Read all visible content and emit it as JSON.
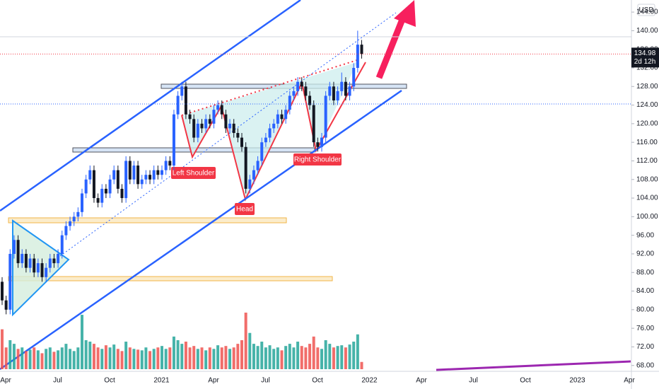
{
  "chart_data": {
    "type": "candlestick",
    "currency": "USD",
    "last_price": 134.98,
    "countdown": "2d 12h",
    "annotations": [
      "Left Shoulder",
      "Head",
      "Right Shoulder"
    ],
    "x_labels": [
      "Apr",
      "Jul",
      "Oct",
      "2021",
      "Apr",
      "Jul",
      "Oct",
      "2022",
      "Apr",
      "Jul",
      "Oct",
      "2023",
      "Apr"
    ],
    "ylim": [
      67.2,
      146.6
    ],
    "yticks": [
      {
        "value": 68,
        "label": "68.00"
      },
      {
        "value": 72,
        "label": "72.00"
      },
      {
        "value": 76,
        "label": "76.00"
      },
      {
        "value": 80,
        "label": "80.00"
      },
      {
        "value": 84,
        "label": "84.00"
      },
      {
        "value": 88,
        "label": "88.00"
      },
      {
        "value": 92,
        "label": "92.00"
      },
      {
        "value": 96,
        "label": "96.00"
      },
      {
        "value": 100,
        "label": "100.00"
      },
      {
        "value": 104,
        "label": "104.00"
      },
      {
        "value": 108,
        "label": "108.00"
      },
      {
        "value": 112,
        "label": "112.00"
      },
      {
        "value": 116,
        "label": "116.00"
      },
      {
        "value": 120,
        "label": "120.00"
      },
      {
        "value": 124,
        "label": "124.00"
      },
      {
        "value": 128,
        "label": "128.00"
      },
      {
        "value": 132,
        "label": "132.00"
      },
      {
        "value": 136,
        "label": "136.00"
      },
      {
        "value": 140,
        "label": "140.00"
      },
      {
        "value": 144,
        "label": "144.00"
      }
    ],
    "up_color": "#2962ff",
    "down_color": "#131722",
    "volume_up_color": "#26a69a",
    "volume_down_color": "#ef5350",
    "open": [
      86,
      82,
      80,
      92,
      95,
      90,
      92,
      89,
      91,
      88,
      90,
      87,
      89,
      91,
      90,
      92,
      96,
      98,
      99,
      100,
      101,
      105,
      108,
      110,
      104,
      103,
      106,
      105,
      108,
      110,
      106,
      104,
      112,
      108,
      111,
      107,
      108,
      109,
      108,
      110,
      109,
      110,
      112,
      111,
      122,
      126,
      128,
      122,
      121,
      117,
      120,
      119,
      121,
      120,
      123,
      124,
      122,
      119,
      120,
      118,
      117,
      115,
      106,
      108,
      110,
      112,
      116,
      117,
      119,
      120,
      122,
      121,
      123,
      126,
      127,
      129,
      128,
      126,
      124,
      116,
      115,
      117,
      126,
      128,
      125,
      127,
      129,
      126,
      128,
      132,
      137
    ],
    "high": [
      87,
      83,
      93,
      96,
      96,
      93,
      93,
      92,
      92,
      91,
      91,
      90,
      92,
      92,
      93,
      97,
      99,
      100,
      101,
      102,
      106,
      109,
      111,
      111,
      105,
      107,
      107,
      109,
      111,
      111,
      107,
      113,
      113,
      112,
      112,
      109,
      110,
      110,
      111,
      111,
      111,
      113,
      113,
      123,
      127,
      129,
      129,
      123,
      122,
      121,
      121,
      122,
      122,
      124,
      125,
      125,
      123,
      121,
      121,
      119,
      118,
      116,
      109,
      111,
      113,
      117,
      118,
      120,
      121,
      123,
      123,
      124,
      127,
      128,
      130,
      130,
      129,
      127,
      125,
      117,
      118,
      127,
      129,
      129,
      128,
      131,
      130,
      129,
      133,
      140,
      138
    ],
    "low": [
      81,
      79,
      79,
      91,
      89,
      89,
      88,
      88,
      87,
      87,
      86,
      86,
      88,
      89,
      89,
      91,
      95,
      97,
      98,
      99,
      100,
      104,
      107,
      103,
      102,
      102,
      104,
      104,
      107,
      105,
      103,
      103,
      107,
      107,
      106,
      106,
      107,
      107,
      107,
      108,
      108,
      109,
      110,
      110,
      121,
      125,
      121,
      120,
      116,
      116,
      118,
      118,
      119,
      119,
      122,
      121,
      118,
      118,
      117,
      116,
      114,
      105,
      105,
      107,
      109,
      111,
      115,
      116,
      118,
      119,
      120,
      120,
      122,
      125,
      126,
      127,
      125,
      123,
      115,
      114,
      114,
      116,
      125,
      124,
      124,
      126,
      125,
      125,
      127,
      131,
      134
    ],
    "close": [
      82,
      80,
      92,
      95,
      90,
      92,
      89,
      91,
      88,
      90,
      87,
      89,
      91,
      90,
      92,
      96,
      98,
      99,
      100,
      101,
      105,
      108,
      110,
      104,
      103,
      106,
      105,
      108,
      110,
      106,
      104,
      112,
      108,
      111,
      107,
      108,
      109,
      108,
      110,
      109,
      110,
      112,
      111,
      122,
      126,
      128,
      122,
      121,
      117,
      120,
      119,
      121,
      120,
      123,
      124,
      122,
      119,
      120,
      118,
      117,
      115,
      106,
      108,
      110,
      112,
      116,
      117,
      119,
      120,
      122,
      121,
      123,
      126,
      127,
      129,
      128,
      126,
      124,
      116,
      115,
      117,
      126,
      128,
      125,
      127,
      129,
      126,
      128,
      132,
      137,
      135
    ],
    "volume": [
      55,
      30,
      40,
      35,
      28,
      30,
      25,
      27,
      30,
      26,
      22,
      28,
      30,
      24,
      26,
      30,
      35,
      28,
      25,
      30,
      75,
      40,
      38,
      35,
      30,
      28,
      33,
      30,
      34,
      28,
      25,
      38,
      30,
      28,
      27,
      26,
      30,
      25,
      28,
      30,
      32,
      28,
      30,
      45,
      40,
      35,
      38,
      30,
      32,
      28,
      30,
      26,
      30,
      28,
      33,
      30,
      32,
      28,
      30,
      35,
      40,
      78,
      50,
      35,
      32,
      38,
      30,
      33,
      28,
      30,
      26,
      32,
      35,
      30,
      38,
      32,
      30,
      35,
      45,
      30,
      28,
      40,
      35,
      30,
      32,
      33,
      30,
      34,
      38,
      48,
      10
    ]
  }
}
